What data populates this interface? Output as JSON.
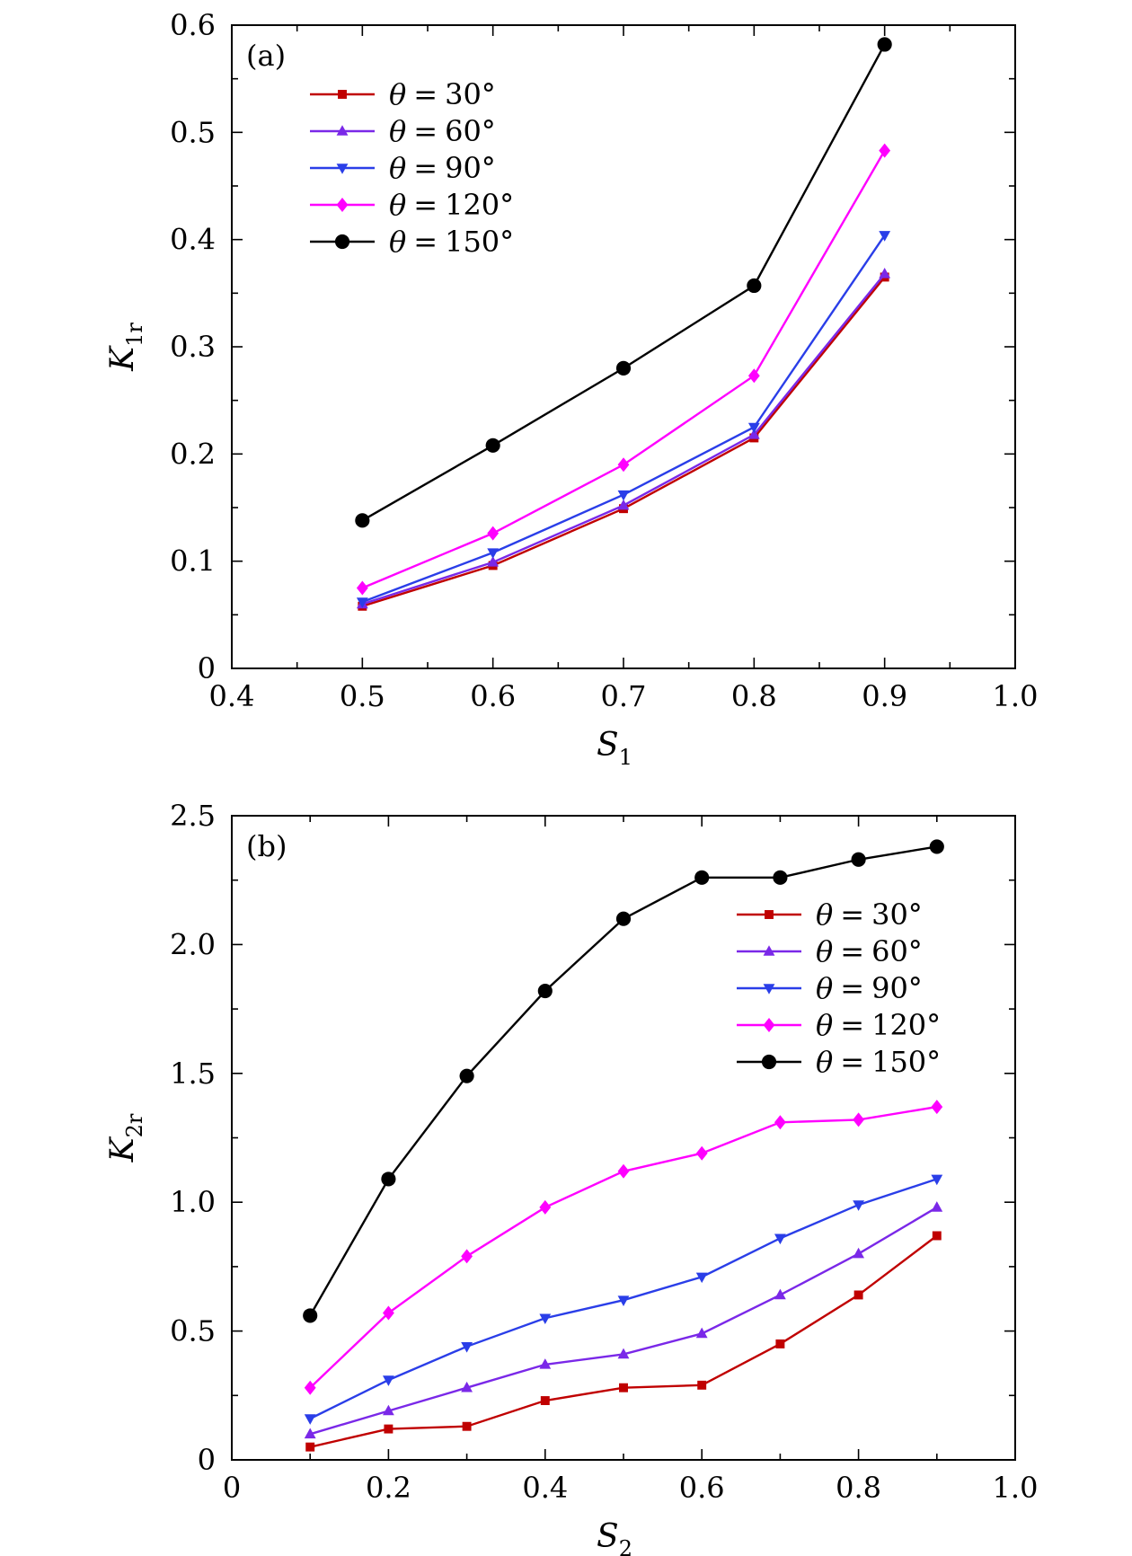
{
  "chart_data": [
    {
      "type": "line",
      "panel_label": "(a)",
      "xlabel": "S",
      "xlabel_sub": "1",
      "ylabel": "K",
      "ylabel_sub": "1r",
      "xlim": [
        0.4,
        1.0
      ],
      "ylim": [
        0,
        0.6
      ],
      "x_ticks": [
        "0.4",
        "0.5",
        "0.6",
        "0.7",
        "0.8",
        "0.9",
        "1.0"
      ],
      "x_tick_values": [
        0.4,
        0.5,
        0.6,
        0.7,
        0.8,
        0.9,
        1.0
      ],
      "y_ticks": [
        "0",
        "0.1",
        "0.2",
        "0.3",
        "0.4",
        "0.5",
        "0.6"
      ],
      "y_tick_values": [
        0,
        0.1,
        0.2,
        0.3,
        0.4,
        0.5,
        0.6
      ],
      "legend_position": "top-left",
      "x": [
        0.5,
        0.6,
        0.7,
        0.8,
        0.9
      ],
      "series": [
        {
          "name": "θ = 30°",
          "label_var": "θ",
          "label_eq": "=",
          "label_val": "30°",
          "color": "#c00000",
          "marker": "square",
          "values": [
            0.058,
            0.096,
            0.149,
            0.215,
            0.365
          ]
        },
        {
          "name": "θ = 60°",
          "label_var": "θ",
          "label_eq": "=",
          "label_val": "60°",
          "color": "#7a28e8",
          "marker": "triangle-up",
          "values": [
            0.06,
            0.099,
            0.152,
            0.218,
            0.368
          ]
        },
        {
          "name": "θ = 90°",
          "label_var": "θ",
          "label_eq": "=",
          "label_val": "90°",
          "color": "#2a3ee8",
          "marker": "triangle-down",
          "values": [
            0.062,
            0.108,
            0.162,
            0.225,
            0.404
          ]
        },
        {
          "name": "θ = 120°",
          "label_var": "θ",
          "label_eq": "=",
          "label_val": "120°",
          "color": "#ff00ff",
          "marker": "diamond",
          "values": [
            0.075,
            0.126,
            0.19,
            0.273,
            0.483
          ]
        },
        {
          "name": "θ = 150°",
          "label_var": "θ",
          "label_eq": "=",
          "label_val": "150°",
          "color": "#000000",
          "marker": "circle",
          "values": [
            0.138,
            0.208,
            0.28,
            0.357,
            0.582
          ]
        }
      ]
    },
    {
      "type": "line",
      "panel_label": "(b)",
      "xlabel": "S",
      "xlabel_sub": "2",
      "ylabel": "K",
      "ylabel_sub": "2r",
      "xlim": [
        0,
        1.0
      ],
      "ylim": [
        0,
        2.5
      ],
      "x_ticks": [
        "0",
        "0.2",
        "0.4",
        "0.6",
        "0.8",
        "1.0"
      ],
      "x_tick_values": [
        0,
        0.2,
        0.4,
        0.6,
        0.8,
        1.0
      ],
      "y_ticks": [
        "0",
        "0.5",
        "1.0",
        "1.5",
        "2.0",
        "2.5"
      ],
      "y_tick_values": [
        0,
        0.5,
        1.0,
        1.5,
        2.0,
        2.5
      ],
      "legend_position": "right",
      "x": [
        0.1,
        0.2,
        0.3,
        0.4,
        0.5,
        0.6,
        0.7,
        0.8,
        0.9
      ],
      "series": [
        {
          "name": "θ = 30°",
          "label_var": "θ",
          "label_eq": "=",
          "label_val": "30°",
          "color": "#c00000",
          "marker": "square",
          "values": [
            0.05,
            0.12,
            0.13,
            0.23,
            0.28,
            0.29,
            0.45,
            0.64,
            0.87
          ]
        },
        {
          "name": "θ = 60°",
          "label_var": "θ",
          "label_eq": "=",
          "label_val": "60°",
          "color": "#7a28e8",
          "marker": "triangle-up",
          "values": [
            0.1,
            0.19,
            0.28,
            0.37,
            0.41,
            0.49,
            0.64,
            0.8,
            0.98
          ]
        },
        {
          "name": "θ = 90°",
          "label_var": "θ",
          "label_eq": "=",
          "label_val": "90°",
          "color": "#2a3ee8",
          "marker": "triangle-down",
          "values": [
            0.16,
            0.31,
            0.44,
            0.55,
            0.62,
            0.71,
            0.86,
            0.99,
            1.09
          ]
        },
        {
          "name": "θ = 120°",
          "label_var": "θ",
          "label_eq": "=",
          "label_val": "120°",
          "color": "#ff00ff",
          "marker": "diamond",
          "values": [
            0.28,
            0.57,
            0.79,
            0.98,
            1.12,
            1.19,
            1.31,
            1.32,
            1.37
          ]
        },
        {
          "name": "θ = 150°",
          "label_var": "θ",
          "label_eq": "=",
          "label_val": "150°",
          "color": "#000000",
          "marker": "circle",
          "values": [
            0.56,
            1.09,
            1.49,
            1.82,
            2.1,
            2.26,
            2.26,
            2.33,
            2.38
          ]
        }
      ]
    }
  ]
}
